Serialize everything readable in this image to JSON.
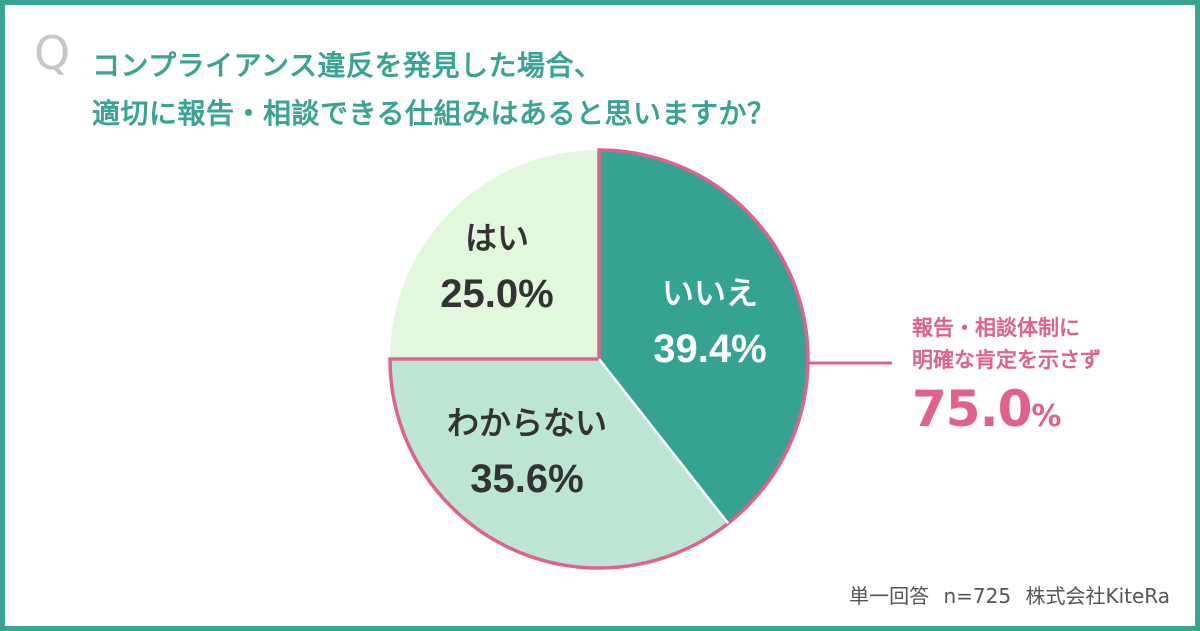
{
  "question": {
    "mark": "Q",
    "line1": "コンプライアンス違反を発見した場合、",
    "line2": "適切に報告・相談できる仕組みはあると思いますか？"
  },
  "chart_data": {
    "type": "pie",
    "slices": [
      {
        "label": "いいえ",
        "value": 39.4,
        "display": "39.4%",
        "color": "#34a391",
        "text_color": "#ffffff"
      },
      {
        "label": "わからない",
        "value": 35.6,
        "display": "35.6%",
        "color": "#bde5d3",
        "text_color": "#333333"
      },
      {
        "label": "はい",
        "value": 25.0,
        "display": "25.0%",
        "color": "#e1f8dc",
        "text_color": "#333333"
      }
    ],
    "highlight_color": "#e0628c",
    "start": "top",
    "direction": "clockwise"
  },
  "callout": {
    "line1": "報告・相談体制に",
    "line2": "明確な肯定を示さず",
    "value": "75.0",
    "unit": "%"
  },
  "footer": {
    "type": "単一回答",
    "n": "n=725",
    "source": "株式会社KiteRa"
  },
  "colors": {
    "accent": "#3aa393",
    "highlight": "#e0628c",
    "q_mark": "#c7c7c7"
  }
}
